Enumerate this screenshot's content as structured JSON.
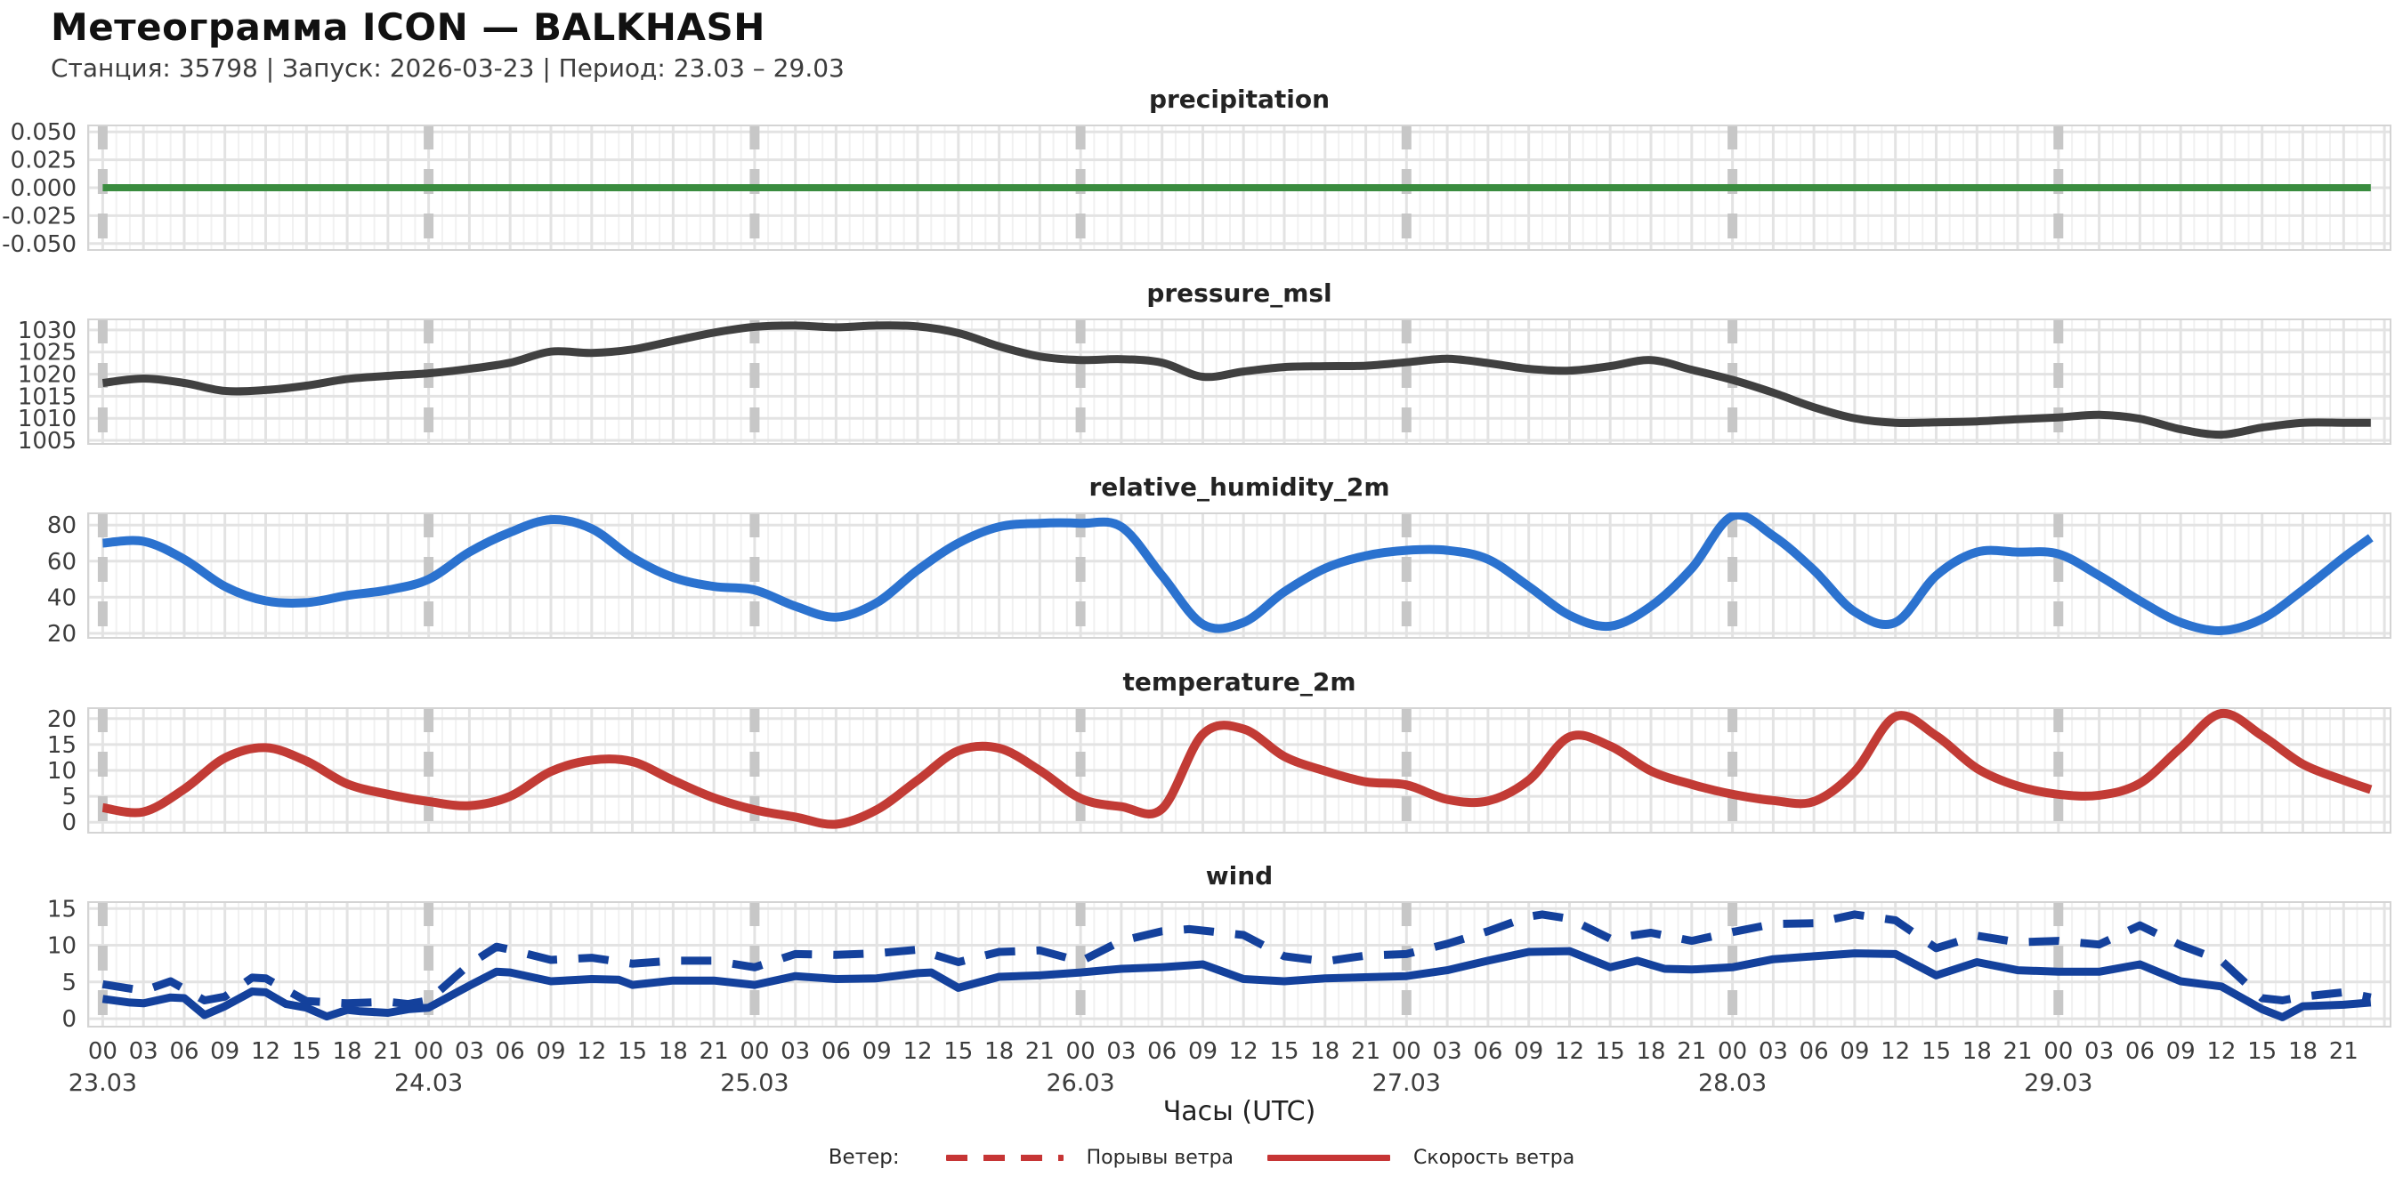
{
  "header": {
    "title": "Метеограмма ICON — BALKHASH",
    "subtitle": "Станция: 35798  | Запуск: 2026-03-23  | Период: 23.03 – 29.03"
  },
  "xaxis": {
    "label": "Часы (UTC)",
    "hour_labels": [
      "00",
      "03",
      "06",
      "09",
      "12",
      "15",
      "18",
      "21"
    ],
    "date_labels": [
      "23.03",
      "24.03",
      "25.03",
      "26.03",
      "27.03",
      "28.03",
      "29.03"
    ],
    "day_marks": [
      0,
      24,
      48,
      72,
      96,
      120,
      144
    ],
    "xlim_hours": [
      -1.14,
      168.52
    ]
  },
  "legend": {
    "prefix": "Ветер:",
    "items": [
      {
        "label": "Порывы ветра",
        "style": "dashed",
        "color": "#c63535"
      },
      {
        "label": "Скорость ветра",
        "style": "solid",
        "color": "#c63535"
      }
    ]
  },
  "colors": {
    "precipitation": "#3a8c3f",
    "pressure": "#404040",
    "humidity": "#2b72cf",
    "temperature": "#c23b35",
    "wind": "#14419c",
    "grid_major": "#e3e3e3",
    "grid_minor": "#f1f1f1",
    "day_marker": "#c7c7c7",
    "spine": "#d4d4d4",
    "tick_text": "#3d3d3d"
  },
  "chart_data": [
    {
      "type": "line",
      "title": "precipitation",
      "ylim": [
        -0.0565,
        0.0565
      ],
      "ytick_vals": [
        0.05,
        0.025,
        0.0,
        -0.025,
        -0.05
      ],
      "ytick_labels": [
        "0.050",
        "0.025",
        "0.000",
        "-0.025",
        "-0.050"
      ],
      "series": [
        {
          "name": "precipitation",
          "color": "#3a8c3f",
          "width": 8,
          "dash": null,
          "smooth": false,
          "t": [
            0,
            167
          ],
          "v": [
            0,
            0
          ]
        }
      ]
    },
    {
      "type": "line",
      "title": "pressure_msl",
      "ylim": [
        1004,
        1032.6
      ],
      "ytick_vals": [
        1030,
        1025,
        1020,
        1015,
        1010,
        1005
      ],
      "ytick_labels": [
        "1030",
        "1025",
        "1020",
        "1015",
        "1010",
        "1005"
      ],
      "series": [
        {
          "name": "pressure_msl",
          "color": "#404040",
          "width": 9,
          "dash": null,
          "smooth": true,
          "t": [
            0,
            3,
            6,
            9,
            12,
            15,
            18,
            21,
            24,
            27,
            30,
            33,
            36,
            39,
            42,
            45,
            48,
            51,
            54,
            57,
            60,
            63,
            66,
            69,
            72,
            75,
            78,
            81,
            84,
            87,
            90,
            93,
            96,
            99,
            102,
            105,
            108,
            111,
            114,
            117,
            120,
            123,
            126,
            129,
            132,
            135,
            138,
            141,
            144,
            147,
            150,
            153,
            156,
            159,
            162,
            165,
            167
          ],
          "v": [
            1018,
            1019,
            1018,
            1016.2,
            1016.4,
            1017.4,
            1018.9,
            1019.6,
            1020.2,
            1021.2,
            1022.6,
            1025.1,
            1024.8,
            1025.6,
            1027.5,
            1029.4,
            1030.7,
            1031,
            1030.6,
            1031,
            1030.8,
            1029.3,
            1026.3,
            1024,
            1023.2,
            1023.4,
            1022.6,
            1019.4,
            1020.6,
            1021.6,
            1021.8,
            1021.9,
            1022.7,
            1023.5,
            1022.5,
            1021.2,
            1020.8,
            1021.8,
            1023.2,
            1021,
            1018.7,
            1015.8,
            1012.5,
            1010,
            1009,
            1009.1,
            1009.3,
            1009.8,
            1010.2,
            1010.8,
            1009.9,
            1007.5,
            1006.3,
            1007.9,
            1009,
            1009,
            1009
          ]
        }
      ]
    },
    {
      "type": "line",
      "title": "relative_humidity_2m",
      "ylim": [
        17,
        87
      ],
      "ytick_vals": [
        80,
        60,
        40,
        20
      ],
      "ytick_labels": [
        "80",
        "60",
        "40",
        "20"
      ],
      "series": [
        {
          "name": "relative_humidity_2m",
          "color": "#2b72cf",
          "width": 10,
          "dash": null,
          "smooth": true,
          "t": [
            0,
            3,
            6,
            9,
            12,
            15,
            18,
            21,
            24,
            27,
            30,
            33,
            36,
            39,
            42,
            45,
            48,
            51,
            54,
            57,
            60,
            63,
            66,
            69,
            72,
            75,
            78,
            81,
            84,
            87,
            90,
            93,
            96,
            99,
            102,
            105,
            108,
            111,
            114,
            117,
            120,
            123,
            126,
            129,
            132,
            135,
            138,
            141,
            144,
            147,
            150,
            153,
            156,
            159,
            162,
            165,
            167
          ],
          "v": [
            70,
            71,
            61,
            46,
            38,
            37,
            41,
            44,
            50,
            65,
            76,
            83,
            78,
            62,
            51,
            46,
            44,
            35,
            29,
            37,
            55,
            70,
            79,
            81,
            81,
            79,
            52,
            25,
            26,
            43,
            56,
            63,
            66,
            66,
            61,
            46,
            30,
            24,
            35,
            56,
            85,
            74,
            55,
            32,
            26,
            52,
            65,
            65,
            64,
            52,
            38,
            26,
            21.5,
            28,
            44,
            62,
            73
          ]
        }
      ]
    },
    {
      "type": "line",
      "title": "temperature_2m",
      "ylim": [
        -2.2,
        22.2
      ],
      "ytick_vals": [
        20,
        15,
        10,
        5,
        0
      ],
      "ytick_labels": [
        "20",
        "15",
        "10",
        "5",
        "0"
      ],
      "series": [
        {
          "name": "temperature_2m",
          "color": "#c23b35",
          "width": 10,
          "dash": null,
          "smooth": true,
          "t": [
            0,
            3,
            6,
            9,
            12,
            15,
            18,
            21,
            24,
            27,
            30,
            33,
            36,
            39,
            42,
            45,
            48,
            51,
            54,
            57,
            60,
            63,
            66,
            69,
            72,
            75,
            78,
            81,
            84,
            87,
            90,
            93,
            96,
            99,
            102,
            105,
            108,
            111,
            114,
            117,
            120,
            123,
            126,
            129,
            132,
            135,
            138,
            141,
            144,
            147,
            150,
            153,
            156,
            159,
            162,
            165,
            167
          ],
          "v": [
            2.8,
            2.0,
            6.4,
            12.4,
            14.4,
            11.8,
            7.4,
            5.4,
            4.0,
            3.2,
            5.0,
            9.8,
            12.0,
            11.7,
            8.1,
            4.7,
            2.4,
            1.0,
            -0.4,
            2.4,
            8.1,
            13.8,
            14.3,
            10.0,
            4.6,
            3.0,
            2.6,
            17.0,
            18.0,
            12.7,
            9.9,
            7.8,
            7.2,
            4.4,
            4.1,
            8.1,
            16.5,
            14.7,
            9.9,
            7.3,
            5.4,
            4.2,
            4.0,
            9.8,
            20.4,
            16.7,
            10.4,
            7.0,
            5.4,
            5.2,
            7.5,
            14.4,
            21.0,
            16.7,
            11.2,
            8.1,
            6.3
          ]
        }
      ]
    },
    {
      "type": "line",
      "title": "wind",
      "ylim": [
        -1.2,
        16
      ],
      "ytick_vals": [
        15,
        10,
        5,
        0
      ],
      "ytick_labels": [
        "15",
        "10",
        "5",
        "0"
      ],
      "series": [
        {
          "name": "Порывы ветра",
          "color": "#14419c",
          "width": 9,
          "dash": "34 24",
          "smooth": false,
          "t": [
            0,
            3,
            5,
            7.5,
            9,
            11,
            12,
            15,
            18,
            21,
            22.5,
            24,
            27,
            29,
            30,
            33,
            36,
            39,
            42,
            45,
            48,
            51,
            54,
            57,
            60,
            63,
            66,
            69,
            72,
            75,
            78,
            80,
            84,
            87,
            90,
            93,
            96,
            99,
            102,
            105,
            106,
            108,
            111,
            114,
            117,
            120,
            123,
            126,
            129,
            132,
            135,
            138,
            141,
            144,
            147,
            150,
            153,
            156,
            159,
            160.5,
            162,
            165,
            167
          ],
          "v": [
            4.7,
            3.8,
            5.1,
            2.5,
            3.0,
            5.6,
            5.5,
            2.4,
            2.1,
            2.3,
            2.0,
            2.5,
            7.4,
            9.8,
            9.4,
            8.0,
            8.3,
            7.5,
            7.9,
            7.9,
            7.0,
            8.8,
            8.7,
            8.9,
            9.4,
            7.7,
            9.1,
            9.3,
            7.8,
            10.6,
            11.9,
            12.2,
            11.4,
            8.5,
            7.8,
            8.6,
            8.8,
            10.2,
            11.9,
            13.9,
            14.2,
            13.6,
            10.9,
            11.7,
            10.6,
            11.8,
            12.9,
            13.0,
            14.2,
            13.4,
            9.6,
            11.3,
            10.4,
            10.6,
            10.1,
            12.7,
            10.0,
            7.9,
            2.8,
            2.5,
            3.0,
            3.6,
            2.9
          ]
        },
        {
          "name": "Скорость ветра",
          "color": "#14419c",
          "width": 9,
          "dash": null,
          "smooth": false,
          "t": [
            0,
            2,
            3,
            5,
            6,
            7.5,
            9,
            11,
            12,
            13.5,
            15,
            16.5,
            18,
            19,
            21,
            22.5,
            24,
            27,
            29,
            30,
            33,
            36,
            38,
            39,
            42,
            45,
            48,
            51,
            54,
            57,
            60,
            61,
            63,
            66,
            69,
            72,
            75,
            78,
            81,
            84,
            87,
            90,
            96,
            99,
            102,
            105,
            108,
            111,
            113,
            115,
            117,
            120,
            123,
            126,
            129,
            132,
            135,
            138,
            141,
            144,
            147,
            150,
            153,
            156,
            159,
            160.5,
            162,
            165,
            167
          ],
          "v": [
            2.7,
            2.2,
            2.1,
            2.9,
            2.8,
            0.5,
            1.7,
            3.7,
            3.6,
            2.0,
            1.5,
            0.3,
            1.2,
            1.0,
            0.8,
            1.3,
            1.5,
            4.5,
            6.4,
            6.3,
            5.1,
            5.4,
            5.3,
            4.6,
            5.2,
            5.2,
            4.6,
            5.8,
            5.4,
            5.5,
            6.2,
            6.3,
            4.2,
            5.7,
            5.9,
            6.3,
            6.8,
            7.0,
            7.4,
            5.4,
            5.1,
            5.5,
            5.8,
            6.6,
            7.9,
            9.1,
            9.2,
            7.0,
            7.9,
            6.8,
            6.7,
            7.0,
            8.1,
            8.5,
            8.9,
            8.8,
            5.9,
            7.7,
            6.6,
            6.4,
            6.4,
            7.4,
            5.1,
            4.4,
            1.3,
            0.2,
            1.7,
            1.9,
            2.2
          ]
        }
      ]
    }
  ]
}
